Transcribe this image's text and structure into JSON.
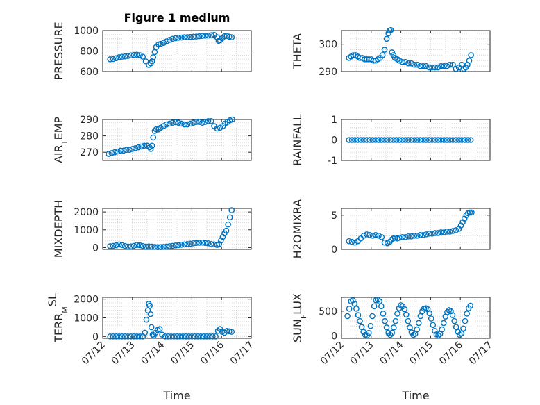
{
  "figure": {
    "title": "Figure 1 medium"
  },
  "colors": {
    "marker": "#0072BD",
    "axis": "#262626"
  },
  "x_axis": {
    "label": "Time",
    "range": [
      "07/12",
      "07/17"
    ],
    "ticks": [
      "07/12",
      "07/13",
      "07/14",
      "07/15",
      "07/16",
      "07/17"
    ]
  },
  "chart_data": [
    {
      "type": "scatter",
      "title": "Figure 1 medium",
      "ylabel": "PRESSURE",
      "ylim": [
        600,
        1000
      ],
      "yticks": [
        "600",
        "800",
        "1000"
      ],
      "grid": true,
      "x": [
        0.25,
        0.35,
        0.45,
        0.55,
        0.65,
        0.75,
        0.85,
        0.95,
        1.05,
        1.15,
        1.25,
        1.35,
        1.45,
        1.55,
        1.62,
        1.66,
        1.7,
        1.75,
        1.8,
        1.88,
        1.95,
        2.05,
        2.15,
        2.25,
        2.35,
        2.45,
        2.55,
        2.65,
        2.75,
        2.85,
        2.95,
        3.05,
        3.15,
        3.25,
        3.35,
        3.45,
        3.55,
        3.65,
        3.75,
        3.85,
        3.9,
        3.95,
        4.02,
        4.1,
        4.18,
        4.26,
        4.34
      ],
      "y": [
        720,
        722,
        730,
        740,
        745,
        748,
        752,
        758,
        762,
        765,
        760,
        745,
        700,
        665,
        680,
        700,
        740,
        790,
        840,
        865,
        870,
        880,
        895,
        910,
        920,
        925,
        930,
        932,
        935,
        936,
        938,
        940,
        942,
        945,
        948,
        950,
        952,
        955,
        958,
        935,
        900,
        905,
        925,
        945,
        948,
        940,
        935
      ]
    },
    {
      "type": "scatter",
      "ylabel": "THETA",
      "ylim": [
        290,
        305
      ],
      "yticks": [
        "290",
        "300"
      ],
      "grid": true,
      "x": [
        0.25,
        0.32,
        0.4,
        0.48,
        0.55,
        0.62,
        0.7,
        0.78,
        0.85,
        0.92,
        1.0,
        1.08,
        1.15,
        1.22,
        1.3,
        1.38,
        1.45,
        1.52,
        1.58,
        1.62,
        1.66,
        1.7,
        1.75,
        1.8,
        1.88,
        1.95,
        2.05,
        2.15,
        2.25,
        2.35,
        2.45,
        2.55,
        2.65,
        2.75,
        2.85,
        2.95,
        3.05,
        3.15,
        3.25,
        3.35,
        3.45,
        3.55,
        3.65,
        3.75,
        3.85,
        3.95,
        4.05,
        4.12,
        4.18,
        4.24,
        4.3,
        4.36
      ],
      "y": [
        295,
        295.5,
        296,
        296,
        295.5,
        295,
        295,
        294.5,
        294.5,
        294.5,
        294.5,
        294,
        294,
        294.5,
        295,
        296,
        298,
        302,
        304,
        305,
        305.2,
        297,
        296,
        295,
        294.5,
        294,
        293.5,
        293.5,
        293,
        293,
        292.5,
        292.5,
        292,
        292,
        292,
        291.5,
        291.5,
        291.5,
        291.5,
        292,
        292,
        292,
        292.5,
        292.5,
        291,
        291.5,
        292.5,
        291,
        291.5,
        292.5,
        294,
        296
      ]
    },
    {
      "type": "scatter",
      "ylabel": "AIR_TEMP",
      "ylim": [
        265,
        290
      ],
      "yticks": [
        "270",
        "280",
        "290"
      ],
      "grid": true,
      "x": [
        0.2,
        0.3,
        0.4,
        0.5,
        0.6,
        0.7,
        0.8,
        0.9,
        1.0,
        1.1,
        1.2,
        1.3,
        1.4,
        1.5,
        1.58,
        1.62,
        1.66,
        1.7,
        1.75,
        1.8,
        1.88,
        1.95,
        2.05,
        2.15,
        2.25,
        2.35,
        2.45,
        2.55,
        2.65,
        2.75,
        2.85,
        2.95,
        3.05,
        3.15,
        3.25,
        3.35,
        3.45,
        3.55,
        3.65,
        3.75,
        3.85,
        3.95,
        4.05,
        4.12,
        4.2,
        4.28,
        4.36
      ],
      "y": [
        269,
        269.5,
        270,
        270.5,
        271,
        271,
        271.5,
        271.5,
        272,
        272.5,
        273,
        273.5,
        274,
        274,
        273,
        272,
        274,
        279,
        283,
        284,
        284,
        285,
        286,
        287,
        287.5,
        288,
        288.3,
        288,
        287.5,
        287,
        287,
        287.5,
        288,
        288.5,
        288.5,
        288,
        288.5,
        289,
        289,
        286,
        284.5,
        285,
        286,
        287.5,
        288.5,
        289.5,
        290
      ]
    },
    {
      "type": "scatter",
      "ylabel": "RAINFALL",
      "ylim": [
        -1,
        1
      ],
      "yticks": [
        "-1",
        "0",
        "1"
      ],
      "grid": true,
      "x": [
        0.25,
        0.35,
        0.45,
        0.55,
        0.65,
        0.75,
        0.85,
        0.95,
        1.05,
        1.15,
        1.25,
        1.35,
        1.45,
        1.55,
        1.65,
        1.75,
        1.85,
        1.95,
        2.05,
        2.15,
        2.25,
        2.35,
        2.45,
        2.55,
        2.65,
        2.75,
        2.85,
        2.95,
        3.05,
        3.15,
        3.25,
        3.35,
        3.45,
        3.55,
        3.65,
        3.75,
        3.85,
        3.95,
        4.05,
        4.15,
        4.25,
        4.35
      ],
      "y": [
        0,
        0,
        0,
        0,
        0,
        0,
        0,
        0,
        0,
        0,
        0,
        0,
        0,
        0,
        0,
        0,
        0,
        0,
        0,
        0,
        0,
        0,
        0,
        0,
        0,
        0,
        0,
        0,
        0,
        0,
        0,
        0,
        0,
        0,
        0,
        0,
        0,
        0,
        0,
        0,
        0,
        0
      ]
    },
    {
      "type": "scatter",
      "ylabel": "MIXDEPTH",
      "ylim": [
        -100,
        2200
      ],
      "yticks": [
        "0",
        "1000",
        "2000"
      ],
      "grid": true,
      "x": [
        0.25,
        0.35,
        0.45,
        0.55,
        0.65,
        0.75,
        0.85,
        0.95,
        1.05,
        1.15,
        1.25,
        1.35,
        1.45,
        1.55,
        1.65,
        1.75,
        1.85,
        1.95,
        2.05,
        2.15,
        2.25,
        2.35,
        2.45,
        2.55,
        2.65,
        2.75,
        2.85,
        2.95,
        3.05,
        3.15,
        3.25,
        3.35,
        3.45,
        3.55,
        3.65,
        3.75,
        3.85,
        3.92,
        3.98,
        4.04,
        4.1,
        4.16,
        4.22,
        4.28,
        4.34
      ],
      "y": [
        80,
        100,
        130,
        180,
        140,
        90,
        60,
        70,
        100,
        150,
        130,
        90,
        60,
        70,
        60,
        40,
        30,
        30,
        40,
        60,
        80,
        100,
        120,
        140,
        160,
        180,
        200,
        220,
        240,
        260,
        270,
        280,
        260,
        240,
        200,
        180,
        150,
        200,
        400,
        600,
        800,
        950,
        1300,
        1700,
        2100
      ]
    },
    {
      "type": "scatter",
      "ylabel": "H2OMIXRA",
      "ylim": [
        0,
        6
      ],
      "yticks": [
        "0",
        "5"
      ],
      "grid": true,
      "x": [
        0.25,
        0.35,
        0.45,
        0.55,
        0.65,
        0.75,
        0.85,
        0.95,
        1.05,
        1.15,
        1.25,
        1.35,
        1.45,
        1.55,
        1.62,
        1.68,
        1.74,
        1.8,
        1.88,
        1.95,
        2.05,
        2.15,
        2.25,
        2.35,
        2.45,
        2.55,
        2.65,
        2.75,
        2.85,
        2.95,
        3.05,
        3.15,
        3.25,
        3.35,
        3.45,
        3.55,
        3.65,
        3.75,
        3.85,
        3.95,
        4.02,
        4.08,
        4.14,
        4.2,
        4.26,
        4.32,
        4.38
      ],
      "y": [
        1.2,
        1.1,
        1.0,
        1.2,
        1.6,
        2.0,
        2.2,
        2.1,
        2.0,
        2.1,
        2.0,
        1.8,
        1.0,
        0.9,
        1.1,
        1.4,
        1.6,
        1.7,
        1.6,
        1.7,
        1.8,
        1.8,
        1.9,
        1.9,
        2.0,
        2.0,
        2.1,
        2.1,
        2.2,
        2.3,
        2.3,
        2.4,
        2.4,
        2.5,
        2.5,
        2.6,
        2.6,
        2.7,
        2.8,
        3.0,
        3.5,
        4.0,
        4.5,
        5.0,
        5.3,
        5.4,
        5.4
      ]
    },
    {
      "type": "scatter",
      "ylabel": "TERR_MSL",
      "ylim": [
        -100,
        2100
      ],
      "yticks": [
        "0",
        "1000",
        "2000"
      ],
      "grid": true,
      "x": [
        0.25,
        0.35,
        0.45,
        0.55,
        0.65,
        0.75,
        0.85,
        0.95,
        1.05,
        1.15,
        1.25,
        1.35,
        1.42,
        1.47,
        1.52,
        1.55,
        1.58,
        1.61,
        1.64,
        1.68,
        1.72,
        1.78,
        1.85,
        1.92,
        2.0,
        2.1,
        2.2,
        2.3,
        2.4,
        2.5,
        2.6,
        2.7,
        2.8,
        2.9,
        3.0,
        3.1,
        3.2,
        3.3,
        3.4,
        3.5,
        3.6,
        3.7,
        3.8,
        3.88,
        3.95,
        4.02,
        4.1,
        4.18,
        4.26,
        4.34
      ],
      "y": [
        0,
        0,
        0,
        0,
        0,
        0,
        0,
        0,
        0,
        0,
        0,
        0,
        200,
        900,
        1400,
        1750,
        1650,
        1200,
        500,
        100,
        50,
        200,
        350,
        400,
        100,
        0,
        0,
        0,
        0,
        0,
        0,
        0,
        0,
        0,
        0,
        0,
        0,
        0,
        0,
        0,
        0,
        0,
        0,
        300,
        400,
        250,
        200,
        300,
        280,
        250
      ]
    },
    {
      "type": "scatter",
      "ylabel": "SUN_FLUX",
      "ylim": [
        -50,
        780
      ],
      "yticks": [
        "0",
        "500"
      ],
      "grid": true,
      "x": [
        0.2,
        0.26,
        0.32,
        0.38,
        0.44,
        0.5,
        0.56,
        0.62,
        0.68,
        0.74,
        0.8,
        0.86,
        0.92,
        0.98,
        1.04,
        1.1,
        1.16,
        1.22,
        1.28,
        1.34,
        1.4,
        1.46,
        1.52,
        1.58,
        1.64,
        1.7,
        1.76,
        1.82,
        1.88,
        1.94,
        2.0,
        2.06,
        2.12,
        2.18,
        2.24,
        2.3,
        2.36,
        2.42,
        2.48,
        2.54,
        2.6,
        2.66,
        2.72,
        2.78,
        2.84,
        2.9,
        2.96,
        3.02,
        3.08,
        3.14,
        3.2,
        3.26,
        3.32,
        3.38,
        3.44,
        3.5,
        3.56,
        3.62,
        3.68,
        3.74,
        3.8,
        3.86,
        3.92,
        3.98,
        4.04,
        4.1,
        4.16,
        4.22,
        4.28,
        4.34
      ],
      "y": [
        400,
        550,
        700,
        720,
        650,
        550,
        420,
        300,
        180,
        80,
        20,
        10,
        60,
        200,
        400,
        600,
        720,
        730,
        700,
        600,
        450,
        300,
        170,
        60,
        20,
        60,
        170,
        300,
        450,
        560,
        620,
        600,
        540,
        430,
        300,
        170,
        70,
        20,
        40,
        130,
        260,
        400,
        500,
        550,
        560,
        540,
        460,
        350,
        220,
        100,
        30,
        10,
        40,
        130,
        260,
        390,
        480,
        520,
        500,
        420,
        300,
        180,
        80,
        20,
        50,
        150,
        300,
        450,
        560,
        610
      ]
    }
  ]
}
